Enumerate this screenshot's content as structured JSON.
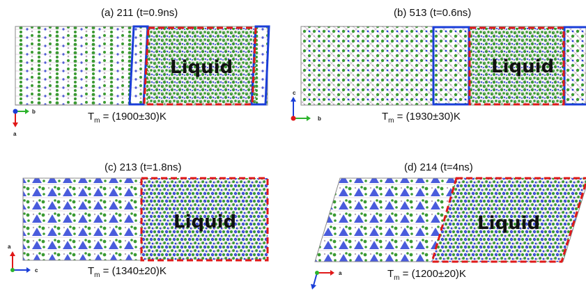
{
  "panels": [
    {
      "title": "(a) 211 (t=0.9ns)",
      "liquid_label": "Liquid",
      "melting_temp": "(1900±30)K",
      "axes": [
        "b",
        "a"
      ]
    },
    {
      "title": "(b) 513 (t=0.6ns)",
      "liquid_label": "Liquid",
      "melting_temp": "(1930±30)K",
      "axes": [
        "c",
        "b"
      ]
    },
    {
      "title": "(c) 213 (t=1.8ns)",
      "liquid_label": "Liquid",
      "melting_temp": "(1340±20)K",
      "axes": [
        "a",
        "c"
      ]
    },
    {
      "title": "(d) 214 (t=4ns)",
      "liquid_label": "Liquid",
      "melting_temp": "(1200±20)K",
      "axes": [
        "a"
      ]
    }
  ],
  "tm_symbol": "T",
  "tm_subscript": "m",
  "tm_equals": " = ",
  "colors": {
    "atom_green": "#3a9a32",
    "atom_blue": "#2a3fd6",
    "atom_grey": "#b8a8b8",
    "liquid_box": "#e01818",
    "solid_box": "#1a3ed8"
  }
}
